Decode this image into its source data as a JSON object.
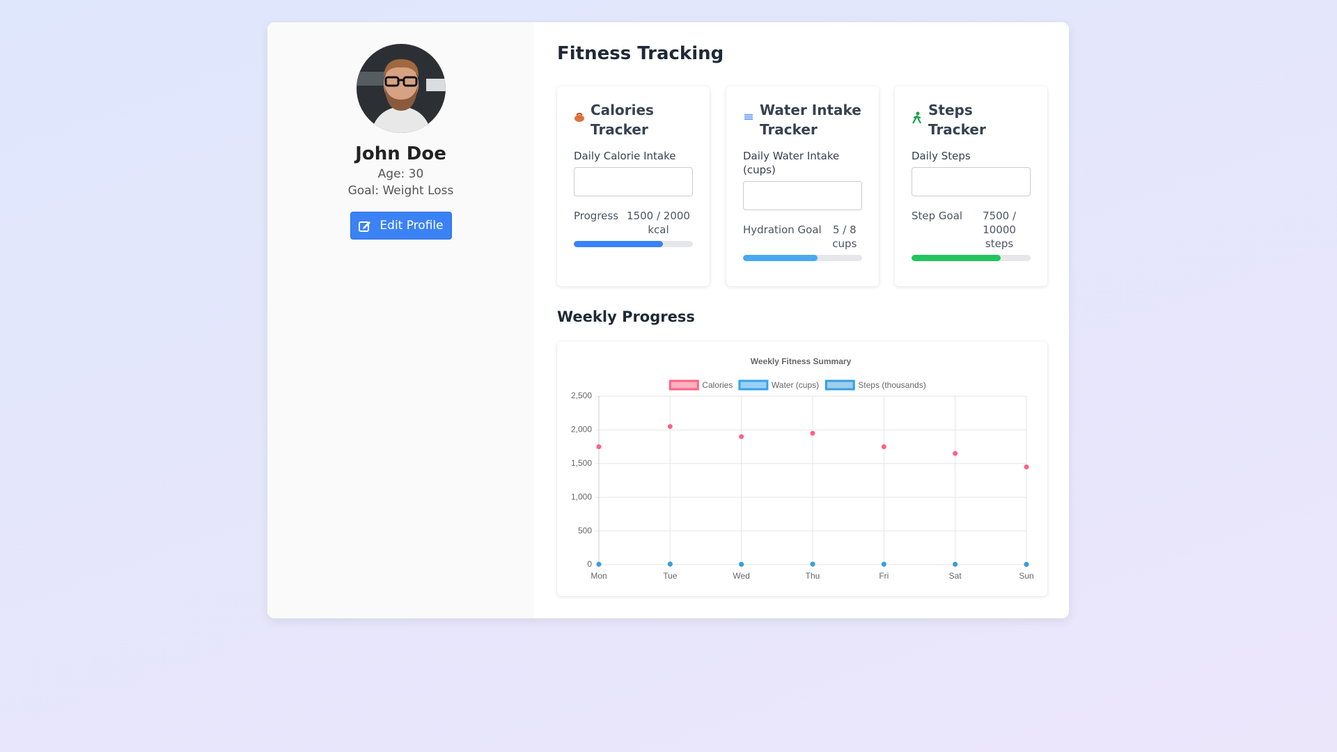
{
  "profile": {
    "name": "John Doe",
    "age": "Age: 30",
    "goal": "Goal: Weight Loss",
    "button": "Edit Profile"
  },
  "main": {
    "title": "Fitness Tracking",
    "weekly_title": "Weekly Progress"
  },
  "trackers": [
    {
      "title": "Calories Tracker",
      "input_label": "Daily Calorie Intake",
      "goal_label": "Progress",
      "progress_text": "1500 / 2000 kcal",
      "current": 1500,
      "goal": 2000,
      "color": "#3b82f6"
    },
    {
      "title": "Water Intake Tracker",
      "input_label": "Daily Water Intake (cups)",
      "goal_label": "Hydration Goal",
      "progress_text": "5 / 8 cups",
      "current": 5,
      "goal": 8,
      "color": "#4aa8ee"
    },
    {
      "title": "Steps Tracker",
      "input_label": "Daily Steps",
      "goal_label": "Step Goal",
      "progress_text": "7500 / 10000 steps",
      "current": 7500,
      "goal": 10000,
      "color": "#22c55e"
    }
  ],
  "chart_data": {
    "type": "line",
    "title": "Weekly Fitness Summary",
    "categories": [
      "Mon",
      "Tue",
      "Wed",
      "Thu",
      "Fri",
      "Sat",
      "Sun"
    ],
    "series": [
      {
        "name": "Calories",
        "color": "#ff6384",
        "values": [
          1750,
          2050,
          1900,
          1950,
          1750,
          1650,
          1450
        ]
      },
      {
        "name": "Water (cups)",
        "color": "#36a2eb",
        "values": [
          6,
          7,
          5,
          8,
          6,
          7,
          5
        ]
      },
      {
        "name": "Steps (thousands)",
        "color": "#3a9ede",
        "values": [
          8,
          10,
          7,
          9,
          8,
          6,
          5
        ]
      }
    ],
    "ylim": [
      0,
      2500
    ],
    "yticks": [
      0,
      500,
      {
        "value": 1000,
        "label": "1,000"
      },
      {
        "value": 1500,
        "label": "1,500"
      },
      {
        "value": 2000,
        "label": "2,000"
      },
      {
        "value": 2500,
        "label": "2,500"
      }
    ],
    "grid": true
  }
}
